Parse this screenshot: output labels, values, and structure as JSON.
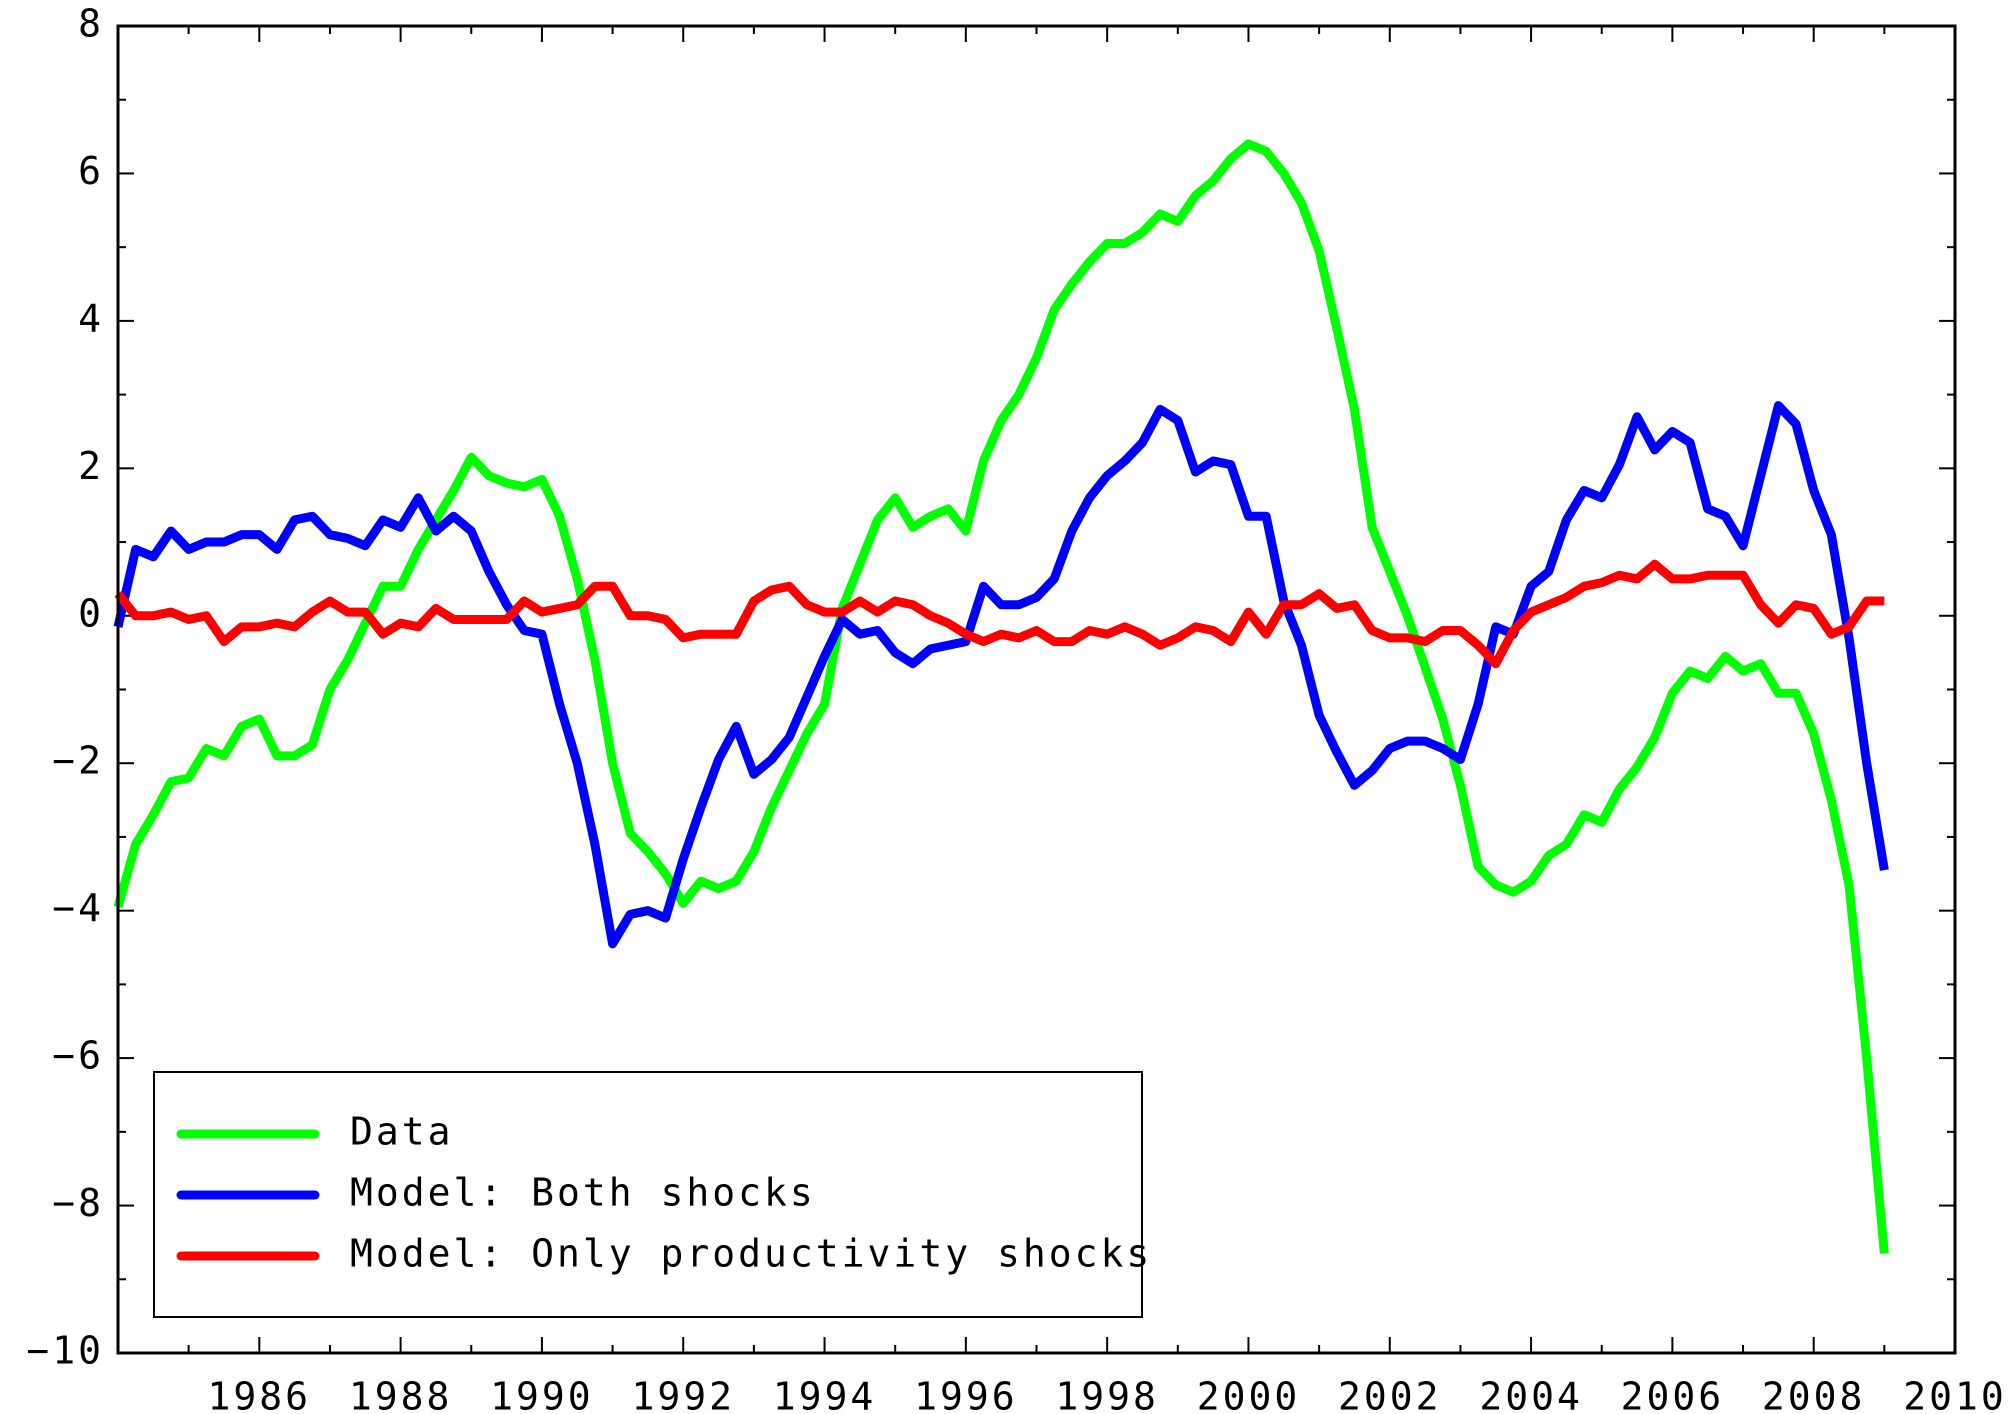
{
  "chart_data": {
    "type": "line",
    "x": [
      1984,
      1984.25,
      1984.5,
      1984.75,
      1985,
      1985.25,
      1985.5,
      1985.75,
      1986,
      1986.25,
      1986.5,
      1986.75,
      1987,
      1987.25,
      1987.5,
      1987.75,
      1988,
      1988.25,
      1988.5,
      1988.75,
      1989,
      1989.25,
      1989.5,
      1989.75,
      1990,
      1990.25,
      1990.5,
      1990.75,
      1991,
      1991.25,
      1991.5,
      1991.75,
      1992,
      1992.25,
      1992.5,
      1992.75,
      1993,
      1993.25,
      1993.5,
      1993.75,
      1994,
      1994.25,
      1994.5,
      1994.75,
      1995,
      1995.25,
      1995.5,
      1995.75,
      1996,
      1996.25,
      1996.5,
      1996.75,
      1997,
      1997.25,
      1997.5,
      1997.75,
      1998,
      1998.25,
      1998.5,
      1998.75,
      1999,
      1999.25,
      1999.5,
      1999.75,
      2000,
      2000.25,
      2000.5,
      2000.75,
      2001,
      2001.25,
      2001.5,
      2001.75,
      2002,
      2002.25,
      2002.5,
      2002.75,
      2003,
      2003.25,
      2003.5,
      2003.75,
      2004,
      2004.25,
      2004.5,
      2004.75,
      2005,
      2005.25,
      2005.5,
      2005.75,
      2006,
      2006.25,
      2006.5,
      2006.75,
      2007,
      2007.25,
      2007.5,
      2007.75,
      2008,
      2008.25,
      2008.5,
      2008.75,
      2009
    ],
    "series": [
      {
        "name": "Data",
        "color": "#00ff00",
        "values": [
          -3.95,
          -3.1,
          -2.7,
          -2.25,
          -2.2,
          -1.8,
          -1.9,
          -1.5,
          -1.4,
          -1.9,
          -1.9,
          -1.75,
          -1.0,
          -0.6,
          -0.1,
          0.4,
          0.4,
          0.9,
          1.3,
          1.7,
          2.15,
          1.9,
          1.8,
          1.75,
          1.85,
          1.35,
          0.5,
          -0.6,
          -2.0,
          -2.95,
          -3.2,
          -3.5,
          -3.9,
          -3.6,
          -3.7,
          -3.6,
          -3.2,
          -2.6,
          -2.1,
          -1.6,
          -1.2,
          0.1,
          0.7,
          1.3,
          1.6,
          1.2,
          1.35,
          1.45,
          1.15,
          2.1,
          2.65,
          3.0,
          3.5,
          4.15,
          4.5,
          4.8,
          5.05,
          5.05,
          5.2,
          5.45,
          5.35,
          5.7,
          5.9,
          6.2,
          6.4,
          6.3,
          6.0,
          5.6,
          4.95,
          3.9,
          2.8,
          1.2,
          0.6,
          0.0,
          -0.7,
          -1.4,
          -2.3,
          -3.4,
          -3.65,
          -3.75,
          -3.6,
          -3.25,
          -3.1,
          -2.7,
          -2.8,
          -2.35,
          -2.05,
          -1.65,
          -1.05,
          -0.75,
          -0.85,
          -0.55,
          -0.75,
          -0.65,
          -1.05,
          -1.05,
          -1.6,
          -2.5,
          -3.65,
          -6.0,
          -8.65
        ]
      },
      {
        "name": "Model: Both shocks",
        "color": "#0000ff",
        "values": [
          -0.15,
          0.9,
          0.8,
          1.15,
          0.9,
          1.0,
          1.0,
          1.1,
          1.1,
          0.9,
          1.3,
          1.35,
          1.1,
          1.05,
          0.95,
          1.3,
          1.2,
          1.6,
          1.15,
          1.35,
          1.15,
          0.6,
          0.15,
          -0.2,
          -0.25,
          -1.2,
          -2.0,
          -3.1,
          -4.45,
          -4.05,
          -4.0,
          -4.1,
          -3.3,
          -2.6,
          -1.95,
          -1.5,
          -2.15,
          -1.95,
          -1.65,
          -1.1,
          -0.55,
          -0.05,
          -0.25,
          -0.2,
          -0.5,
          -0.65,
          -0.45,
          -0.4,
          -0.35,
          0.4,
          0.15,
          0.15,
          0.25,
          0.5,
          1.15,
          1.6,
          1.9,
          2.1,
          2.35,
          2.8,
          2.65,
          1.95,
          2.1,
          2.05,
          1.35,
          1.35,
          0.2,
          -0.4,
          -1.35,
          -1.85,
          -2.3,
          -2.1,
          -1.8,
          -1.7,
          -1.7,
          -1.8,
          -1.95,
          -1.2,
          -0.15,
          -0.25,
          0.4,
          0.6,
          1.3,
          1.7,
          1.6,
          2.05,
          2.7,
          2.25,
          2.5,
          2.35,
          1.45,
          1.35,
          0.95,
          1.9,
          2.85,
          2.6,
          1.7,
          1.1,
          -0.3,
          -2.0,
          -3.45
        ]
      },
      {
        "name": "Model: Only productivity shocks",
        "color": "#ff0000",
        "values": [
          0.3,
          0.0,
          0.0,
          0.05,
          -0.05,
          0.0,
          -0.35,
          -0.15,
          -0.15,
          -0.1,
          -0.15,
          0.05,
          0.2,
          0.05,
          0.05,
          -0.25,
          -0.1,
          -0.15,
          0.1,
          -0.05,
          -0.05,
          -0.05,
          -0.05,
          0.2,
          0.05,
          0.1,
          0.15,
          0.4,
          0.4,
          0.0,
          0.0,
          -0.05,
          -0.3,
          -0.25,
          -0.25,
          -0.25,
          0.2,
          0.35,
          0.4,
          0.15,
          0.05,
          0.05,
          0.2,
          0.05,
          0.2,
          0.15,
          0.0,
          -0.1,
          -0.25,
          -0.35,
          -0.25,
          -0.3,
          -0.2,
          -0.35,
          -0.35,
          -0.2,
          -0.25,
          -0.15,
          -0.25,
          -0.4,
          -0.3,
          -0.15,
          -0.2,
          -0.35,
          0.05,
          -0.25,
          0.15,
          0.15,
          0.3,
          0.1,
          0.15,
          -0.2,
          -0.3,
          -0.3,
          -0.35,
          -0.2,
          -0.2,
          -0.4,
          -0.65,
          -0.2,
          0.05,
          0.15,
          0.25,
          0.4,
          0.45,
          0.55,
          0.5,
          0.7,
          0.5,
          0.5,
          0.55,
          0.55,
          0.55,
          0.15,
          -0.1,
          0.15,
          0.1,
          -0.25,
          -0.15,
          0.2,
          0.2
        ]
      }
    ],
    "xlim": [
      1984,
      2010
    ],
    "xticks": [
      1986,
      1988,
      1990,
      1992,
      1994,
      1996,
      1998,
      2000,
      2002,
      2004,
      2006,
      2008,
      2010
    ],
    "ylim": [
      -10,
      8
    ],
    "yticks": [
      {
        "value": -10,
        "label": "−10"
      },
      {
        "value": -8,
        "label": "−8"
      },
      {
        "value": -6,
        "label": "−6"
      },
      {
        "value": -4,
        "label": "−4"
      },
      {
        "value": -2,
        "label": "−2"
      },
      0,
      2,
      4,
      6,
      8
    ],
    "grid": false,
    "legend": "lower left"
  }
}
